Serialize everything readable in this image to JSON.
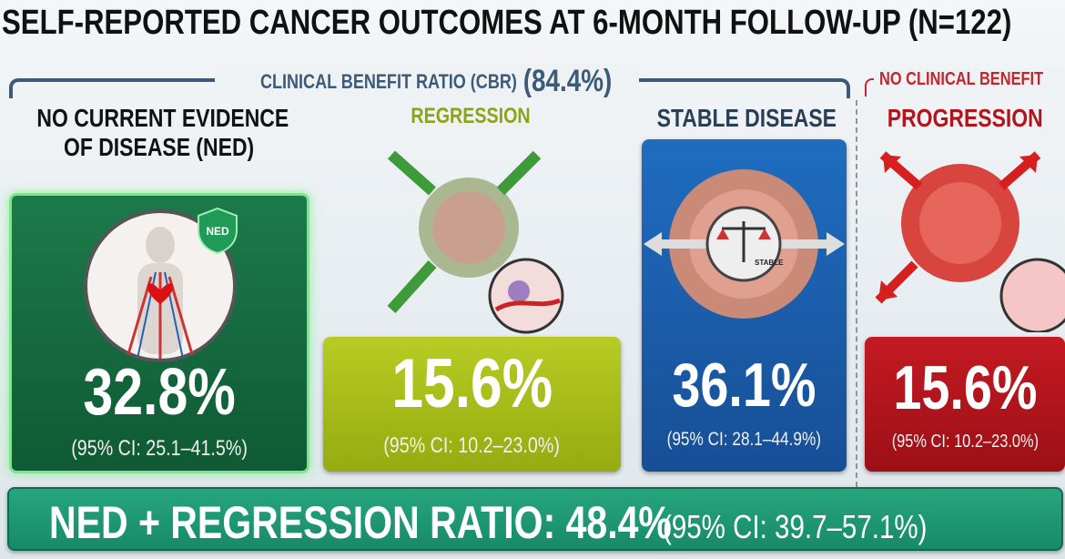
{
  "title": "SELF-REPORTED CANCER OUTCOMES AT 6-MONTH FOLLOW-UP (N=122)",
  "cbr": {
    "label": "CLINICAL BENEFIT RATIO (CBR)",
    "value": "(84.4%)",
    "color": "#3d5a78"
  },
  "no_benefit": {
    "label": "NO CLINICAL BENEFIT",
    "color": "#c0282d"
  },
  "categories": [
    {
      "header": "NO CURRENT EVIDENCE",
      "header2": "OF DISEASE (NED)",
      "value": "32.8%",
      "ci": "(95% CI: 25.1–41.5%)",
      "badge": "NED",
      "color": "#136b3f"
    },
    {
      "header": "REGRESSION",
      "value": "15.6%",
      "ci": "(95% CI: 10.2–23.0%)",
      "color": "#a6bd1a"
    },
    {
      "header": "STABLE DISEASE",
      "value": "36.1%",
      "ci": "(95% CI: 28.1–44.9%)",
      "badge": "STABLE",
      "color": "#1b5fae"
    },
    {
      "header": "PROGRESSION",
      "value": "15.6%",
      "ci": "(95% CI: 10.2–23.0%)",
      "color": "#b3141c"
    }
  ],
  "summary": {
    "label": "NED + REGRESSION RATIO: 48.4%",
    "ci": "(95% CI: 39.7–57.1%)",
    "color": "#1f9a73"
  }
}
